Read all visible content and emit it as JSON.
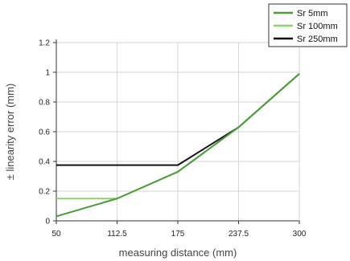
{
  "chart_data": {
    "type": "line",
    "title": "",
    "xlabel": "measuring distance (mm)",
    "ylabel": "± linearity error (mm)",
    "x_ticks": [
      "50",
      "112.5",
      "175",
      "237.5",
      "300"
    ],
    "y_ticks": [
      "0",
      "0.2",
      "0.4",
      "0.6",
      "0.8",
      "1",
      "1.2"
    ],
    "xlim": [
      50,
      300
    ],
    "ylim": [
      0,
      1.2
    ],
    "grid": true,
    "legend_position": "top-right",
    "series": [
      {
        "name": "Sr 5mm",
        "color": "#4a9d3a",
        "x": [
          50,
          112.5,
          175,
          237.5,
          300
        ],
        "y": [
          0.03,
          0.15,
          0.33,
          0.63,
          0.99
        ]
      },
      {
        "name": "Sr 100mm",
        "color": "#8fd06a",
        "x": [
          50,
          112.5,
          175,
          237.5,
          300
        ],
        "y": [
          0.15,
          0.15,
          0.33,
          0.63,
          0.99
        ]
      },
      {
        "name": "Sr 250mm",
        "color": "#111111",
        "x": [
          50,
          112.5,
          175,
          237.5,
          300
        ],
        "y": [
          0.375,
          0.375,
          0.375,
          0.63,
          0.99
        ]
      }
    ]
  }
}
